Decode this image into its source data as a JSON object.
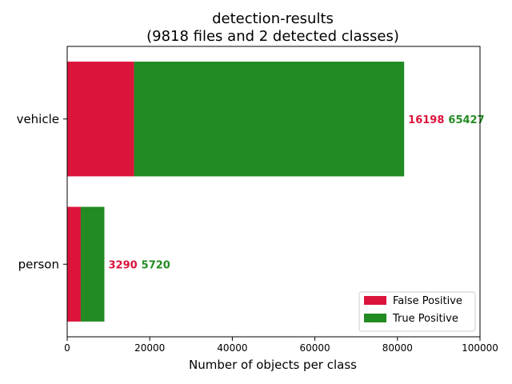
{
  "chart_data": {
    "type": "bar",
    "orientation": "horizontal",
    "stacked": true,
    "title": "detection-results",
    "subtitle": "(9818 files and 2 detected classes)",
    "xlabel": "Number of objects per class",
    "ylabel": "",
    "xlim": [
      0,
      100000
    ],
    "x_ticks": [
      "0",
      "20000",
      "40000",
      "60000",
      "80000",
      "100000"
    ],
    "categories": [
      "person",
      "vehicle"
    ],
    "series": [
      {
        "name": "False Positive",
        "color": "#dc143c",
        "values": [
          3290,
          16198
        ]
      },
      {
        "name": "True Positive",
        "color": "#228b22",
        "values": [
          5720,
          65427
        ]
      }
    ],
    "data_labels": {
      "false_positive": [
        "3290",
        "16198"
      ],
      "true_positive": [
        "5720",
        "65427"
      ]
    },
    "legend_position": "lower-right",
    "grid": false
  }
}
